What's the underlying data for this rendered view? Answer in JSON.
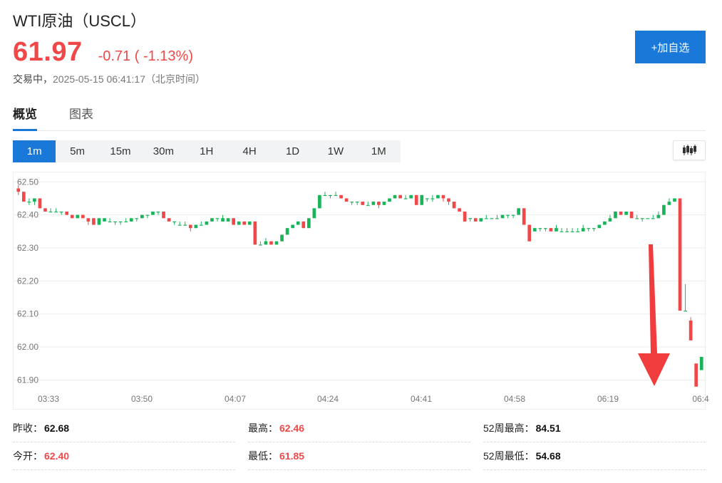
{
  "header": {
    "title": "WTI原油（USCL）",
    "price": "61.97",
    "change": "-0.71 ( -1.13%)",
    "status": "交易中，",
    "time": "2025-05-15 06:41:17（北京时间）",
    "add_button": "+加自选"
  },
  "tabs": [
    {
      "label": "概览",
      "active": true
    },
    {
      "label": "图表",
      "active": false
    }
  ],
  "periods": [
    {
      "label": "1m",
      "active": true
    },
    {
      "label": "5m",
      "active": false
    },
    {
      "label": "15m",
      "active": false
    },
    {
      "label": "30m",
      "active": false
    },
    {
      "label": "1H",
      "active": false
    },
    {
      "label": "4H",
      "active": false
    },
    {
      "label": "1D",
      "active": false
    },
    {
      "label": "1W",
      "active": false
    },
    {
      "label": "1M",
      "active": false
    }
  ],
  "chart_type_icon": "candlestick-icon",
  "colors": {
    "up": "#19b35a",
    "down": "#f04848",
    "accent": "#1a78d8",
    "arrow": "#f03c3c"
  },
  "chart_data": {
    "type": "candlestick",
    "ylim": [
      61.86,
      62.52
    ],
    "yticks": [
      "62.50",
      "62.40",
      "62.30",
      "62.20",
      "62.10",
      "62.00",
      "61.90"
    ],
    "xticks": [
      "03:33",
      "03:50",
      "04:07",
      "04:24",
      "04:41",
      "04:58",
      "06:19",
      "06:4"
    ],
    "grid": true,
    "annotation": "large-red-down-arrow",
    "candles": [
      [
        62.48,
        62.47,
        62.49,
        62.46
      ],
      [
        62.47,
        62.44,
        62.47,
        62.44
      ],
      [
        62.44,
        62.44,
        62.45,
        62.43
      ],
      [
        62.44,
        62.45,
        62.45,
        62.43
      ],
      [
        62.45,
        62.42,
        62.45,
        62.42
      ],
      [
        62.42,
        62.41,
        62.42,
        62.41
      ],
      [
        62.41,
        62.41,
        62.42,
        62.41
      ],
      [
        62.41,
        62.41,
        62.42,
        62.41
      ],
      [
        62.41,
        62.41,
        62.41,
        62.4
      ],
      [
        62.41,
        62.4,
        62.41,
        62.4
      ],
      [
        62.4,
        62.39,
        62.4,
        62.39
      ],
      [
        62.39,
        62.4,
        62.4,
        62.39
      ],
      [
        62.4,
        62.39,
        62.4,
        62.39
      ],
      [
        62.39,
        62.38,
        62.39,
        62.37
      ],
      [
        62.39,
        62.37,
        62.39,
        62.37
      ],
      [
        62.37,
        62.39,
        62.39,
        62.37
      ],
      [
        62.38,
        62.39,
        62.39,
        62.38
      ],
      [
        62.38,
        62.38,
        62.39,
        62.38
      ],
      [
        62.38,
        62.38,
        62.38,
        62.37
      ],
      [
        62.38,
        62.38,
        62.38,
        62.37
      ],
      [
        62.38,
        62.38,
        62.39,
        62.38
      ],
      [
        62.38,
        62.39,
        62.39,
        62.38
      ],
      [
        62.39,
        62.39,
        62.39,
        62.38
      ],
      [
        62.39,
        62.4,
        62.4,
        62.39
      ],
      [
        62.4,
        62.4,
        62.4,
        62.39
      ],
      [
        62.4,
        62.41,
        62.41,
        62.4
      ],
      [
        62.41,
        62.41,
        62.41,
        62.4
      ],
      [
        62.41,
        62.39,
        62.41,
        62.39
      ],
      [
        62.39,
        62.38,
        62.39,
        62.38
      ],
      [
        62.38,
        62.38,
        62.38,
        62.37
      ],
      [
        62.37,
        62.37,
        62.38,
        62.37
      ],
      [
        62.37,
        62.37,
        62.38,
        62.37
      ],
      [
        62.37,
        62.36,
        62.37,
        62.35
      ],
      [
        62.36,
        62.37,
        62.37,
        62.36
      ],
      [
        62.37,
        62.37,
        62.38,
        62.37
      ],
      [
        62.37,
        62.38,
        62.38,
        62.37
      ],
      [
        62.38,
        62.39,
        62.39,
        62.38
      ],
      [
        62.39,
        62.39,
        62.39,
        62.38
      ],
      [
        62.38,
        62.39,
        62.4,
        62.38
      ],
      [
        62.38,
        62.39,
        62.39,
        62.38
      ],
      [
        62.39,
        62.37,
        62.39,
        62.37
      ],
      [
        62.37,
        62.38,
        62.38,
        62.37
      ],
      [
        62.38,
        62.37,
        62.38,
        62.37
      ],
      [
        62.37,
        62.38,
        62.38,
        62.37
      ],
      [
        62.38,
        62.31,
        62.38,
        62.31
      ],
      [
        62.31,
        62.31,
        62.32,
        62.31
      ],
      [
        62.31,
        62.32,
        62.33,
        62.31
      ],
      [
        62.32,
        62.31,
        62.32,
        62.31
      ],
      [
        62.31,
        62.32,
        62.32,
        62.31
      ],
      [
        62.32,
        62.34,
        62.34,
        62.32
      ],
      [
        62.34,
        62.36,
        62.36,
        62.34
      ],
      [
        62.36,
        62.37,
        62.37,
        62.36
      ],
      [
        62.37,
        62.38,
        62.38,
        62.37
      ],
      [
        62.38,
        62.36,
        62.38,
        62.36
      ],
      [
        62.36,
        62.39,
        62.39,
        62.36
      ],
      [
        62.39,
        62.42,
        62.42,
        62.39
      ],
      [
        62.42,
        62.46,
        62.46,
        62.42
      ],
      [
        62.46,
        62.46,
        62.47,
        62.46
      ],
      [
        62.46,
        62.46,
        62.46,
        62.45
      ],
      [
        62.46,
        62.46,
        62.47,
        62.46
      ],
      [
        62.46,
        62.45,
        62.46,
        62.45
      ],
      [
        62.45,
        62.44,
        62.45,
        62.44
      ],
      [
        62.44,
        62.44,
        62.44,
        62.43
      ],
      [
        62.44,
        62.44,
        62.44,
        62.43
      ],
      [
        62.44,
        62.43,
        62.44,
        62.43
      ],
      [
        62.43,
        62.43,
        62.44,
        62.43
      ],
      [
        62.43,
        62.44,
        62.44,
        62.43
      ],
      [
        62.44,
        62.43,
        62.44,
        62.42
      ],
      [
        62.43,
        62.44,
        62.44,
        62.43
      ],
      [
        62.44,
        62.45,
        62.45,
        62.44
      ],
      [
        62.45,
        62.46,
        62.46,
        62.45
      ],
      [
        62.46,
        62.45,
        62.46,
        62.45
      ],
      [
        62.45,
        62.45,
        62.46,
        62.45
      ],
      [
        62.45,
        62.46,
        62.46,
        62.45
      ],
      [
        62.46,
        62.43,
        62.46,
        62.43
      ],
      [
        62.43,
        62.46,
        62.46,
        62.43
      ],
      [
        62.45,
        62.45,
        62.45,
        62.44
      ],
      [
        62.45,
        62.45,
        62.46,
        62.44
      ],
      [
        62.45,
        62.46,
        62.46,
        62.45
      ],
      [
        62.46,
        62.45,
        62.46,
        62.44
      ],
      [
        62.45,
        62.44,
        62.45,
        62.43
      ],
      [
        62.44,
        62.42,
        62.44,
        62.42
      ],
      [
        62.42,
        62.41,
        62.42,
        62.41
      ],
      [
        62.41,
        62.38,
        62.41,
        62.38
      ],
      [
        62.39,
        62.39,
        62.39,
        62.38
      ],
      [
        62.39,
        62.38,
        62.39,
        62.38
      ],
      [
        62.38,
        62.39,
        62.39,
        62.38
      ],
      [
        62.39,
        62.39,
        62.4,
        62.39
      ],
      [
        62.39,
        62.39,
        62.39,
        62.39
      ],
      [
        62.39,
        62.39,
        62.4,
        62.39
      ],
      [
        62.39,
        62.4,
        62.4,
        62.39
      ],
      [
        62.4,
        62.4,
        62.4,
        62.39
      ],
      [
        62.4,
        62.4,
        62.4,
        62.39
      ],
      [
        62.4,
        62.42,
        62.42,
        62.4
      ],
      [
        62.42,
        62.37,
        62.42,
        62.37
      ],
      [
        62.37,
        62.32,
        62.37,
        62.32
      ],
      [
        62.35,
        62.36,
        62.36,
        62.35
      ],
      [
        62.36,
        62.36,
        62.36,
        62.35
      ],
      [
        62.36,
        62.36,
        62.36,
        62.35
      ],
      [
        62.36,
        62.35,
        62.36,
        62.35
      ],
      [
        62.35,
        62.36,
        62.37,
        62.35
      ],
      [
        62.35,
        62.35,
        62.36,
        62.35
      ],
      [
        62.35,
        62.35,
        62.36,
        62.35
      ],
      [
        62.35,
        62.35,
        62.36,
        62.35
      ],
      [
        62.35,
        62.35,
        62.36,
        62.35
      ],
      [
        62.35,
        62.36,
        62.37,
        62.35
      ],
      [
        62.36,
        62.36,
        62.36,
        62.35
      ],
      [
        62.36,
        62.36,
        62.36,
        62.35
      ],
      [
        62.36,
        62.37,
        62.37,
        62.36
      ],
      [
        62.37,
        62.38,
        62.38,
        62.37
      ],
      [
        62.38,
        62.39,
        62.4,
        62.38
      ],
      [
        62.39,
        62.41,
        62.41,
        62.39
      ],
      [
        62.41,
        62.4,
        62.41,
        62.4
      ],
      [
        62.4,
        62.41,
        62.41,
        62.4
      ],
      [
        62.41,
        62.39,
        62.41,
        62.39
      ],
      [
        62.39,
        62.39,
        62.4,
        62.39
      ],
      [
        62.39,
        62.39,
        62.39,
        62.38
      ],
      [
        62.39,
        62.39,
        62.39,
        62.39
      ],
      [
        62.39,
        62.39,
        62.4,
        62.39
      ],
      [
        62.39,
        62.4,
        62.41,
        62.39
      ],
      [
        62.4,
        62.43,
        62.43,
        62.4
      ],
      [
        62.43,
        62.44,
        62.45,
        62.43
      ],
      [
        62.44,
        62.45,
        62.45,
        62.44
      ],
      [
        62.45,
        62.11,
        62.45,
        62.11
      ],
      [
        62.11,
        62.11,
        62.19,
        62.11
      ],
      [
        62.08,
        62.02,
        62.09,
        62.02
      ],
      [
        61.95,
        61.88,
        61.95,
        61.88
      ],
      [
        61.93,
        61.97,
        61.97,
        61.93
      ]
    ]
  },
  "stats": [
    {
      "label": "昨收：",
      "value": "62.68",
      "color": "dark"
    },
    {
      "label": "最高：",
      "value": "62.46",
      "color": "red"
    },
    {
      "label": "52周最高：",
      "value": "84.51",
      "color": "dark"
    },
    {
      "label": "今开：",
      "value": "62.40",
      "color": "red"
    },
    {
      "label": "最低：",
      "value": "61.85",
      "color": "red"
    },
    {
      "label": "52周最低：",
      "value": "54.68",
      "color": "dark"
    }
  ]
}
